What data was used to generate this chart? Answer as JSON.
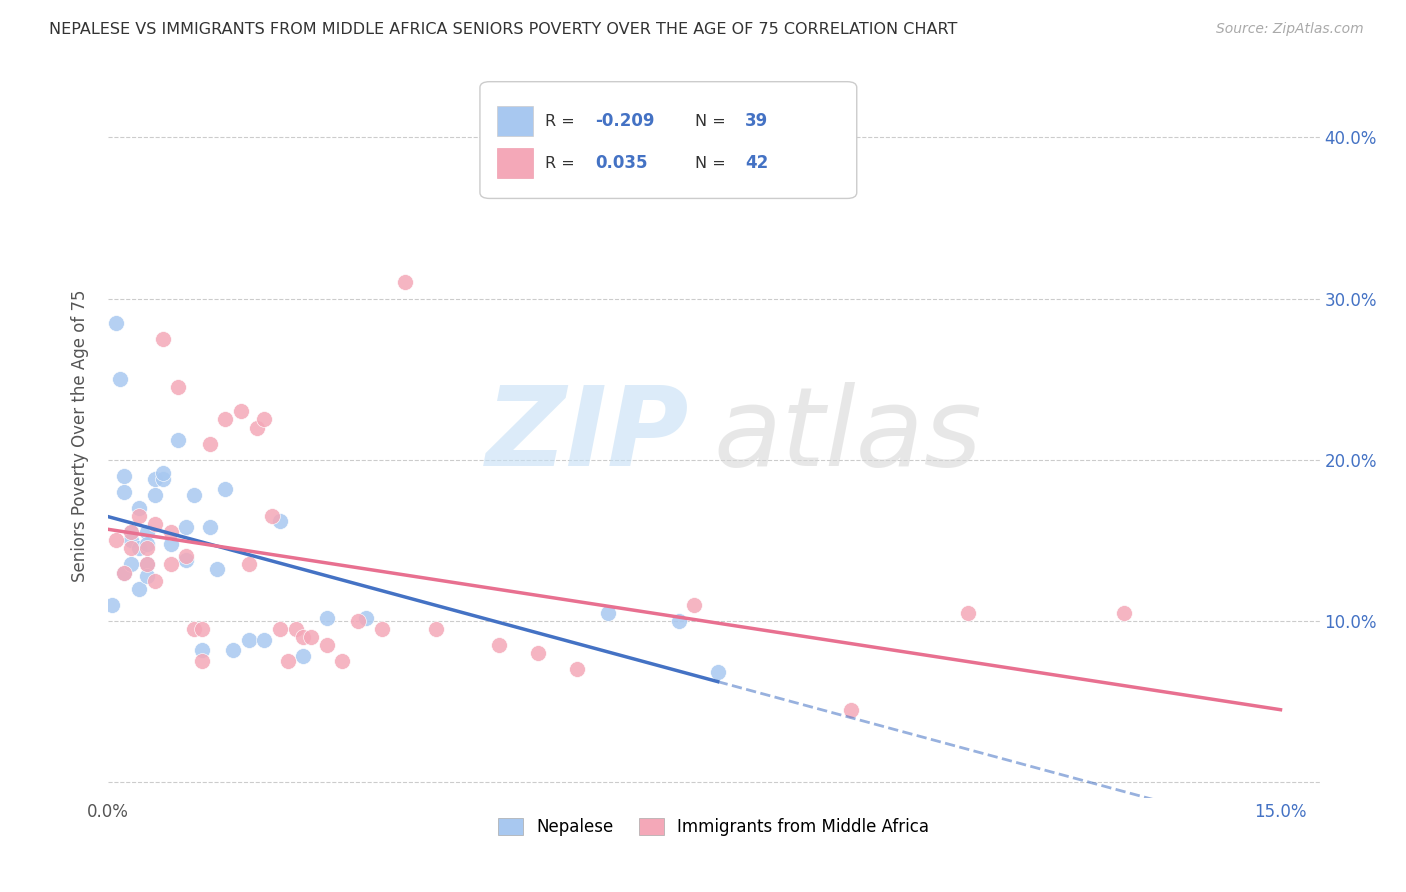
{
  "title": "NEPALESE VS IMMIGRANTS FROM MIDDLE AFRICA SENIORS POVERTY OVER THE AGE OF 75 CORRELATION CHART",
  "source": "Source: ZipAtlas.com",
  "ylabel": "Seniors Poverty Over the Age of 75",
  "xlim": [
    0.0,
    0.155
  ],
  "ylim": [
    -0.01,
    0.44
  ],
  "nepalese_R": -0.209,
  "nepalese_N": 39,
  "midafrica_R": 0.035,
  "midafrica_N": 42,
  "nepalese_color": "#a8c8f0",
  "midafrica_color": "#f4a8b8",
  "nepalese_line_color": "#4472c4",
  "midafrica_line_color": "#e87090",
  "nepalese_x": [
    0.0005,
    0.001,
    0.0015,
    0.002,
    0.002,
    0.002,
    0.003,
    0.003,
    0.003,
    0.004,
    0.004,
    0.004,
    0.005,
    0.005,
    0.005,
    0.005,
    0.006,
    0.006,
    0.007,
    0.007,
    0.008,
    0.009,
    0.01,
    0.01,
    0.011,
    0.012,
    0.013,
    0.014,
    0.015,
    0.016,
    0.018,
    0.02,
    0.022,
    0.025,
    0.028,
    0.033,
    0.064,
    0.073,
    0.078
  ],
  "nepalese_y": [
    0.11,
    0.285,
    0.25,
    0.18,
    0.19,
    0.13,
    0.155,
    0.15,
    0.135,
    0.17,
    0.145,
    0.12,
    0.155,
    0.148,
    0.135,
    0.128,
    0.188,
    0.178,
    0.188,
    0.192,
    0.148,
    0.212,
    0.158,
    0.138,
    0.178,
    0.082,
    0.158,
    0.132,
    0.182,
    0.082,
    0.088,
    0.088,
    0.162,
    0.078,
    0.102,
    0.102,
    0.105,
    0.1,
    0.068
  ],
  "midafrica_x": [
    0.001,
    0.002,
    0.003,
    0.003,
    0.004,
    0.005,
    0.005,
    0.006,
    0.006,
    0.007,
    0.008,
    0.008,
    0.009,
    0.01,
    0.011,
    0.012,
    0.012,
    0.013,
    0.015,
    0.017,
    0.018,
    0.019,
    0.02,
    0.021,
    0.022,
    0.023,
    0.024,
    0.025,
    0.026,
    0.028,
    0.03,
    0.032,
    0.035,
    0.038,
    0.042,
    0.05,
    0.055,
    0.06,
    0.075,
    0.095,
    0.11,
    0.13
  ],
  "midafrica_y": [
    0.15,
    0.13,
    0.155,
    0.145,
    0.165,
    0.145,
    0.135,
    0.16,
    0.125,
    0.275,
    0.155,
    0.135,
    0.245,
    0.14,
    0.095,
    0.095,
    0.075,
    0.21,
    0.225,
    0.23,
    0.135,
    0.22,
    0.225,
    0.165,
    0.095,
    0.075,
    0.095,
    0.09,
    0.09,
    0.085,
    0.075,
    0.1,
    0.095,
    0.31,
    0.095,
    0.085,
    0.08,
    0.07,
    0.11,
    0.045,
    0.105,
    0.105
  ]
}
